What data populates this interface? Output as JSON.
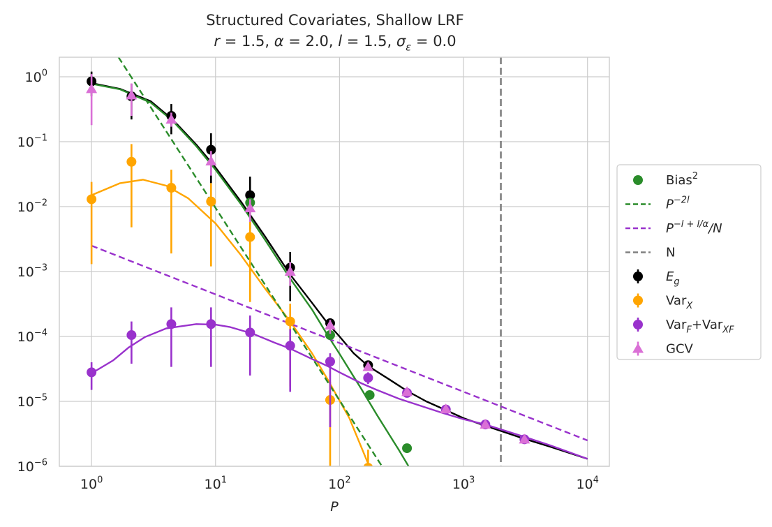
{
  "chart_data": {
    "type": "line",
    "title": "Structured Covariates, Shallow LRF",
    "subtitle_parts": [
      {
        "t": "r",
        "i": true
      },
      {
        "t": " = 1.5, ",
        "i": false
      },
      {
        "t": "α",
        "i": true
      },
      {
        "t": " = 2.0, ",
        "i": false
      },
      {
        "t": "l",
        "i": true
      },
      {
        "t": " = 1.5, ",
        "i": false
      },
      {
        "t": "σ",
        "i": true
      },
      {
        "t": "ε",
        "i": true,
        "sub": true
      },
      {
        "t": " = 0.0",
        "i": false
      }
    ],
    "xlabel": "P",
    "xscale": "log",
    "yscale": "log",
    "xlim": [
      0.55,
      15000
    ],
    "ylim": [
      1e-06,
      2.0
    ],
    "grid": true,
    "legend_location": "center-right outside",
    "x_ticks": [
      {
        "value": 1,
        "base": "10",
        "exp": "0"
      },
      {
        "value": 10,
        "base": "10",
        "exp": "1"
      },
      {
        "value": 100,
        "base": "10",
        "exp": "2"
      },
      {
        "value": 1000,
        "base": "10",
        "exp": "3"
      },
      {
        "value": 10000,
        "base": "10",
        "exp": "4"
      }
    ],
    "y_ticks": [
      {
        "value": 1,
        "base": "10",
        "exp": "0"
      },
      {
        "value": 0.1,
        "base": "10",
        "exp": "−1"
      },
      {
        "value": 0.01,
        "base": "10",
        "exp": "−2"
      },
      {
        "value": 0.001,
        "base": "10",
        "exp": "−3"
      },
      {
        "value": 0.0001,
        "base": "10",
        "exp": "−4"
      },
      {
        "value": 1e-05,
        "base": "10",
        "exp": "−5"
      },
      {
        "value": 1e-06,
        "base": "10",
        "exp": "−6"
      }
    ],
    "vline": {
      "name": "N",
      "x": 2000,
      "color": "#808080"
    },
    "colors": {
      "eg": "#000000",
      "bias": "#2a8c2a",
      "varx": "#ffa500",
      "varf": "#9932cc",
      "gcv": "#da70d6",
      "n": "#808080"
    },
    "theory_lines": [
      {
        "key": "eg",
        "x": [
          1,
          1.7,
          3,
          4.5,
          7,
          10,
          16,
          25,
          40,
          60,
          80,
          100,
          130,
          170,
          250,
          350,
          500,
          700,
          1000,
          1500,
          2000,
          3000,
          5000,
          10000
        ],
        "y": [
          0.8,
          0.65,
          0.42,
          0.22,
          0.09,
          0.04,
          0.012,
          0.0035,
          0.0009,
          0.00033,
          0.00016,
          0.0001,
          5.5e-05,
          3.5e-05,
          2.2e-05,
          1.45e-05,
          1e-05,
          7.5e-06,
          5.5e-06,
          4.2e-06,
          3.5e-06,
          2.7e-06,
          2e-06,
          1.3e-06
        ]
      },
      {
        "key": "bias",
        "x": [
          1,
          1.7,
          3,
          4.5,
          7,
          10,
          16,
          25,
          40,
          60,
          80,
          100,
          150,
          200,
          300,
          500
        ],
        "y": [
          0.78,
          0.64,
          0.4,
          0.21,
          0.085,
          0.037,
          0.011,
          0.0031,
          0.00078,
          0.00026,
          0.000105,
          5.4e-05,
          1.55e-05,
          6.2e-06,
          1.8e-06,
          3.5e-07
        ]
      },
      {
        "key": "varx",
        "x": [
          1,
          1.7,
          2.6,
          4,
          6,
          10,
          16,
          25,
          40,
          60,
          80,
          120,
          170,
          250
        ],
        "y": [
          0.015,
          0.023,
          0.026,
          0.021,
          0.0135,
          0.0055,
          0.0018,
          0.00055,
          0.00017,
          5.5e-05,
          2.2e-05,
          5.5e-06,
          1.1e-06,
          2.5e-07
        ]
      },
      {
        "key": "varf",
        "x": [
          1,
          1.5,
          2,
          2.7,
          4,
          7,
          10,
          13,
          20,
          30,
          40,
          60,
          80,
          100,
          150,
          200,
          300,
          500,
          700,
          1000,
          1500,
          2000,
          3000,
          5000,
          10000
        ],
        "y": [
          2.7e-05,
          4.3e-05,
          6.8e-05,
          9.8e-05,
          0.000133,
          0.000155,
          0.000152,
          0.00014,
          0.00011,
          8e-05,
          6.5e-05,
          4.5e-05,
          3.5e-05,
          2.8e-05,
          1.9e-05,
          1.5e-05,
          1.1e-05,
          8e-06,
          6.5e-06,
          5.3e-06,
          4.4e-06,
          3.7e-06,
          2.9e-06,
          2.1e-06,
          1.3e-06
        ]
      }
    ],
    "power_laws": [
      {
        "name": "P^-2l",
        "key": "bias",
        "x": [
          1.65,
          220
        ],
        "y": [
          2.0,
          1e-06
        ]
      },
      {
        "name": "P^-l+l/α /N",
        "key": "varf",
        "x": [
          1,
          10000
        ],
        "y": [
          0.0025,
          2.5e-06
        ]
      }
    ],
    "series": [
      {
        "name": "E_g",
        "key": "eg",
        "marker": "circle",
        "x": [
          1,
          2.1,
          4.4,
          9.2,
          19,
          40,
          84,
          170
        ],
        "y": [
          0.85,
          0.5,
          0.25,
          0.075,
          0.015,
          0.00115,
          0.00016,
          3.6e-05
        ],
        "err_lo": [
          0.5,
          0.22,
          0.13,
          0.023,
          0.0045,
          0.00035,
          0.000135,
          3.2e-05
        ],
        "err_hi": [
          1.2,
          0.78,
          0.38,
          0.135,
          0.029,
          0.002,
          0.000185,
          4.2e-05
        ]
      },
      {
        "name": "Bias^2",
        "key": "bias",
        "marker": "circle-nobar",
        "x": [
          19,
          84,
          175,
          350
        ],
        "y": [
          0.0115,
          0.000105,
          1.25e-05,
          1.9e-06
        ]
      },
      {
        "name": "Var_X",
        "key": "varx",
        "marker": "circle",
        "x": [
          1,
          2.1,
          4.4,
          9.2,
          19,
          40,
          84,
          170
        ],
        "y": [
          0.013,
          0.049,
          0.0195,
          0.012,
          0.0034,
          0.00017,
          1.05e-05,
          9.5e-07
        ],
        "err_lo": [
          0.0013,
          0.0048,
          0.0019,
          0.0012,
          0.00034,
          1.7e-05,
          1e-06,
          1e-06
        ],
        "err_hi": [
          0.024,
          0.092,
          0.037,
          0.023,
          0.0065,
          0.00032,
          2e-05,
          1.8e-06
        ]
      },
      {
        "name": "Var_F+Var_XF",
        "key": "varf",
        "marker": "circle",
        "x": [
          1,
          2.1,
          4.4,
          9.2,
          19,
          40,
          84,
          170,
          350,
          720,
          1500,
          3100
        ],
        "y": [
          2.8e-05,
          0.000105,
          0.000155,
          0.000155,
          0.000115,
          7.2e-05,
          4.1e-05,
          2.3e-05,
          1.35e-05,
          7.5e-06,
          4.4e-06,
          2.6e-06
        ],
        "err_lo": [
          1.5e-05,
          3.8e-05,
          3.4e-05,
          3.4e-05,
          2.5e-05,
          1.4e-05,
          4e-06,
          1.85e-05,
          1.25e-05,
          7e-06,
          4.1e-06,
          2.4e-06
        ],
        "err_hi": [
          4e-05,
          0.00017,
          0.00028,
          0.00028,
          0.00021,
          0.00013,
          5.5e-05,
          2.8e-05,
          1.45e-05,
          8e-06,
          4.7e-06,
          2.8e-06
        ]
      },
      {
        "name": "GCV",
        "key": "gcv",
        "marker": "triangle",
        "x": [
          1,
          2.1,
          4.4,
          9.2,
          19,
          40,
          84,
          170,
          350,
          720,
          1500,
          3100
        ],
        "y": [
          0.65,
          0.52,
          0.22,
          0.05,
          0.0095,
          0.001,
          0.000148,
          3.4e-05,
          1.4e-05,
          7.6e-06,
          4.4e-06,
          2.6e-06
        ],
        "err_lo": [
          0.18,
          0.25,
          0.17,
          0.03,
          0.0058,
          0.0006,
          0.00011,
          3e-05,
          1.3e-05,
          7.2e-06,
          4.2e-06,
          2.5e-06
        ],
        "err_hi": [
          1.1,
          0.79,
          0.28,
          0.072,
          0.013,
          0.0014,
          0.00018,
          3.8e-05,
          1.5e-05,
          8e-06,
          4.6e-06,
          2.7e-06
        ]
      }
    ],
    "legend": [
      {
        "key": "bias",
        "kind": "dot",
        "parts": [
          {
            "t": "Bias",
            "i": false
          },
          {
            "t": "2",
            "sup": true
          }
        ]
      },
      {
        "key": "bias",
        "kind": "dash",
        "parts": [
          {
            "t": "P",
            "i": true
          },
          {
            "t": "−2l",
            "sup": true,
            "i": true
          }
        ]
      },
      {
        "key": "varf",
        "kind": "dash",
        "parts": [
          {
            "t": "P",
            "i": true
          },
          {
            "t": "−l + l/α",
            "sup": true,
            "i": true
          },
          {
            "t": "/N",
            "i": true
          }
        ]
      },
      {
        "key": "n",
        "kind": "dash",
        "parts": [
          {
            "t": "N",
            "i": false
          }
        ]
      },
      {
        "key": "eg",
        "kind": "errdot",
        "parts": [
          {
            "t": "E",
            "i": true
          },
          {
            "t": "g",
            "sub": true,
            "i": true
          }
        ]
      },
      {
        "key": "varx",
        "kind": "errdot",
        "parts": [
          {
            "t": "Var",
            "i": false
          },
          {
            "t": "X",
            "sub": true,
            "i": true
          }
        ]
      },
      {
        "key": "varf",
        "kind": "errdot",
        "parts": [
          {
            "t": "Var",
            "i": false
          },
          {
            "t": "F",
            "sub": true,
            "i": true
          },
          {
            "t": "+Var",
            "i": false
          },
          {
            "t": "XF",
            "sub": true,
            "i": true
          }
        ]
      },
      {
        "key": "gcv",
        "kind": "errtri",
        "parts": [
          {
            "t": "GCV",
            "i": false
          }
        ]
      }
    ]
  }
}
